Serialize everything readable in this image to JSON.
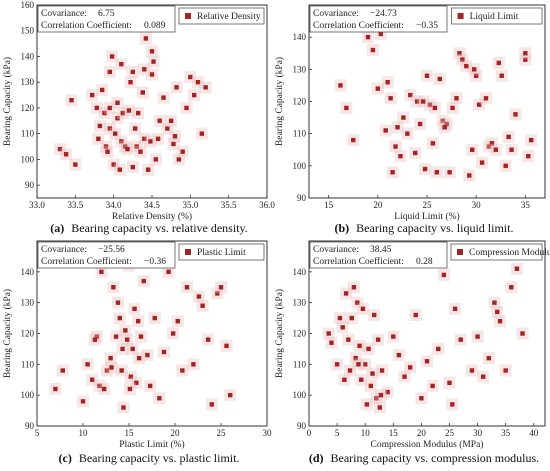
{
  "chart_data": [
    {
      "type": "scatter",
      "caption_letter": "(a)",
      "caption_text": "Bearing capacity vs. relative density.",
      "xlabel": "Relative Density (%)",
      "ylabel": "Bearing Capacity (kPa)",
      "xlim": [
        33.0,
        36.0
      ],
      "ylim": [
        85,
        160
      ],
      "xticks": [
        "33.0",
        "33.5",
        "34.0",
        "34.5",
        "35.0",
        "35.5",
        "36.0"
      ],
      "xtick_values": [
        33.0,
        33.5,
        34.0,
        34.5,
        35.0,
        35.5,
        36.0
      ],
      "yticks": [
        "90",
        "100",
        "110",
        "120",
        "130",
        "140",
        "150",
        "160"
      ],
      "ytick_values": [
        90,
        100,
        110,
        120,
        130,
        140,
        150,
        160
      ],
      "stat1_label": "Covariance:",
      "stat1_value": "6.75",
      "stat2_label": "Correlation Coefficient:",
      "stat2_value": "0.089",
      "legend_placement": "top-right",
      "series": [
        {
          "name": "Relative Density",
          "color": "#a32424",
          "x": [
            33.3,
            33.38,
            33.45,
            33.5,
            33.72,
            33.78,
            33.8,
            33.82,
            33.85,
            33.88,
            33.9,
            33.92,
            33.95,
            33.95,
            33.98,
            34.0,
            34.02,
            34.05,
            34.05,
            34.08,
            34.1,
            34.12,
            34.15,
            34.18,
            34.2,
            34.22,
            34.25,
            34.28,
            34.3,
            34.32,
            34.35,
            34.38,
            34.4,
            34.4,
            34.42,
            34.45,
            34.48,
            34.5,
            34.52,
            34.55,
            34.58,
            34.6,
            34.7,
            34.75,
            34.78,
            34.8,
            34.82,
            34.85,
            34.9,
            34.95,
            35.0,
            35.05,
            35.1,
            35.15,
            35.2,
            33.95,
            34.25,
            34.5,
            34.1,
            34.65
          ],
          "y": [
            104,
            102,
            123,
            98,
            125,
            120,
            108,
            113,
            127,
            118,
            105,
            103,
            120,
            112,
            140,
            98,
            110,
            116,
            122,
            96,
            107,
            118,
            105,
            104,
            119,
            130,
            97,
            112,
            105,
            118,
            103,
            126,
            135,
            108,
            147,
            96,
            107,
            133,
            138,
            100,
            108,
            115,
            112,
            115,
            106,
            109,
            128,
            100,
            103,
            120,
            132,
            125,
            130,
            110,
            128,
            134,
            134,
            142,
            137,
            124
          ]
        }
      ]
    },
    {
      "type": "scatter",
      "caption_letter": "(b)",
      "caption_text": "Bearing capacity vs. liquid limit.",
      "xlabel": "Liquid Limit (%)",
      "ylabel": "Bearing Capacity (kPa)",
      "xlim": [
        13.0,
        37.0
      ],
      "ylim": [
        90,
        150
      ],
      "xticks": [
        "15",
        "20",
        "25",
        "30",
        "35"
      ],
      "xtick_values": [
        15,
        20,
        25,
        30,
        35
      ],
      "yticks": [
        "90",
        "100",
        "110",
        "120",
        "130",
        "140"
      ],
      "ytick_values": [
        90,
        100,
        110,
        120,
        130,
        140
      ],
      "stat1_label": "Covariance:",
      "stat1_value": "−24.73",
      "stat2_label": "Correlation Coefficient:",
      "stat2_value": "−0.35",
      "legend_placement": "top-right",
      "series": [
        {
          "name": "Liquid Limit",
          "color": "#a32424",
          "x": [
            16.2,
            16.8,
            17.0,
            17.5,
            19.0,
            19.5,
            20.0,
            20.3,
            20.8,
            21.0,
            21.3,
            21.8,
            22.0,
            22.3,
            22.6,
            23.0,
            23.3,
            23.8,
            24.0,
            24.3,
            24.8,
            25.0,
            25.3,
            25.6,
            25.8,
            26.0,
            26.3,
            26.6,
            27.0,
            27.3,
            27.6,
            28.0,
            28.3,
            28.6,
            29.0,
            29.3,
            29.6,
            30.0,
            30.3,
            30.6,
            31.0,
            31.3,
            31.6,
            32.0,
            32.3,
            32.6,
            33.0,
            33.3,
            33.6,
            34.0,
            35.0,
            35.3,
            35.6,
            35.0,
            21.5,
            24.6,
            26.8,
            29.8
          ],
          "y": [
            125,
            118,
            147,
            108,
            140,
            136,
            124,
            141,
            111,
            126,
            121,
            106,
            112,
            103,
            115,
            110,
            122,
            104,
            120,
            113,
            99,
            128,
            119,
            107,
            118,
            98,
            127,
            114,
            113,
            98,
            118,
            121,
            135,
            133,
            131,
            97,
            105,
            128,
            119,
            101,
            121,
            106,
            107,
            105,
            132,
            128,
            100,
            109,
            105,
            116,
            133,
            103,
            108,
            135,
            98,
            120,
            112,
            130
          ]
        }
      ]
    },
    {
      "type": "scatter",
      "caption_letter": "(c)",
      "caption_text": "Bearing capacity vs. plastic limit.",
      "xlabel": "Plastic Limit (%)",
      "ylabel": "Bearing Capacity (kPa)",
      "xlim": [
        5,
        30
      ],
      "ylim": [
        90,
        150
      ],
      "xticks": [
        "5",
        "10",
        "15",
        "20",
        "25",
        "30"
      ],
      "xtick_values": [
        5,
        10,
        15,
        20,
        25,
        30
      ],
      "yticks": [
        "90",
        "100",
        "110",
        "120",
        "130",
        "140"
      ],
      "ytick_values": [
        90,
        100,
        110,
        120,
        130,
        140
      ],
      "stat1_label": "Covariance:",
      "stat1_value": "−25.56",
      "stat2_label": "Correlation Coefficient:",
      "stat2_value": "−0.36",
      "legend_placement": "top-right",
      "series": [
        {
          "name": "Plastic Limit",
          "color": "#a32424",
          "x": [
            7.0,
            7.8,
            9.6,
            10.0,
            10.5,
            11.0,
            11.5,
            11.8,
            12.0,
            12.3,
            12.6,
            13.0,
            13.3,
            13.6,
            13.8,
            14.0,
            14.2,
            14.4,
            14.6,
            14.8,
            15.0,
            15.2,
            15.4,
            15.6,
            15.8,
            16.0,
            16.3,
            16.6,
            17.0,
            17.3,
            17.8,
            18.3,
            18.8,
            19.3,
            19.8,
            20.3,
            20.8,
            21.3,
            22.0,
            22.6,
            23.0,
            23.6,
            24.0,
            24.6,
            25.0,
            25.6,
            26.0,
            14.3,
            15.1,
            16.1,
            13.1,
            11.3
          ],
          "y": [
            102,
            108,
            147,
            98,
            110,
            105,
            119,
            103,
            140,
            102,
            108,
            112,
            135,
            119,
            130,
            125,
            108,
            96,
            121,
            118,
            142,
            106,
            115,
            128,
            104,
            124,
            119,
            137,
            113,
            103,
            125,
            99,
            114,
            140,
            120,
            124,
            108,
            135,
            110,
            132,
            129,
            118,
            97,
            133,
            135,
            116,
            100,
            115,
            102,
            112,
            109,
            118
          ]
        }
      ]
    },
    {
      "type": "scatter",
      "caption_letter": "(d)",
      "caption_text": "Bearing capacity vs. compression modulus.",
      "xlabel": "Compression Modulus (MPa)",
      "ylabel": "Bearing Capacity (kPa)",
      "xlim": [
        0,
        42
      ],
      "ylim": [
        90,
        150
      ],
      "xticks": [
        "0",
        "5",
        "10",
        "15",
        "20",
        "25",
        "30",
        "35",
        "40"
      ],
      "xtick_values": [
        0,
        5,
        10,
        15,
        20,
        25,
        30,
        35,
        40
      ],
      "yticks": [
        "90",
        "100",
        "110",
        "120",
        "130",
        "140"
      ],
      "ytick_values": [
        90,
        100,
        110,
        120,
        130,
        140
      ],
      "stat1_label": "Covariance:",
      "stat1_value": "38.45",
      "stat2_label": "Correlation Coefficient:",
      "stat2_value": "0.28",
      "legend_placement": "top-right",
      "series": [
        {
          "name": "Compression Modulus",
          "color": "#a32424",
          "x": [
            3.5,
            4.0,
            5.0,
            5.5,
            6.0,
            6.3,
            6.6,
            7.0,
            7.3,
            7.6,
            8.0,
            8.3,
            8.6,
            9.0,
            9.3,
            9.6,
            10.0,
            10.3,
            10.6,
            11.0,
            11.3,
            11.6,
            12.0,
            12.3,
            12.6,
            13.0,
            14.0,
            15.0,
            16.0,
            17.0,
            18.0,
            19.0,
            20.0,
            21.0,
            22.0,
            23.0,
            24.0,
            25.0,
            26.0,
            27.0,
            28.0,
            29.0,
            30.0,
            31.0,
            32.0,
            33.0,
            34.0,
            35.0,
            36.0,
            37.0,
            38.0,
            25.5,
            33.5,
            12.8,
            8.8
          ],
          "y": [
            120,
            117,
            110,
            125,
            122,
            105,
            133,
            118,
            108,
            125,
            135,
            112,
            130,
            116,
            105,
            128,
            110,
            97,
            115,
            103,
            107,
            126,
            99,
            118,
            96,
            108,
            101,
            119,
            113,
            106,
            109,
            126,
            99,
            111,
            103,
            115,
            139,
            104,
            128,
            118,
            147,
            108,
            119,
            106,
            112,
            130,
            124,
            108,
            135,
            141,
            120,
            97,
            127,
            100,
            110
          ]
        }
      ]
    }
  ]
}
